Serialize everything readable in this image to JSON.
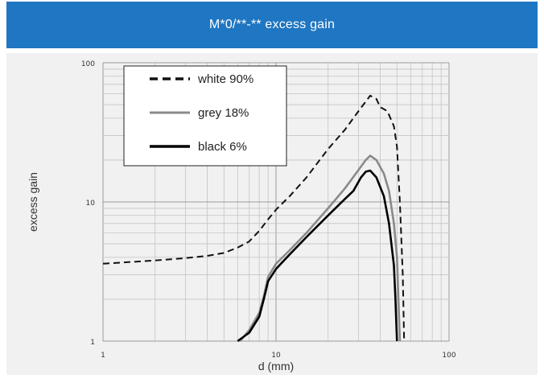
{
  "header": {
    "title": "M*0/**-** excess gain"
  },
  "colors": {
    "header": "#1f76c2",
    "panel": "#f1f1f1",
    "white_series": "#111111",
    "grey_series": "#8a8a8a",
    "black_series": "#000000"
  },
  "chart_data": {
    "type": "line",
    "title": "M*0/**-** excess gain",
    "xlabel": "d (mm)",
    "ylabel": "excess gain",
    "xscale": "log",
    "yscale": "log",
    "xlim": [
      1,
      100
    ],
    "ylim": [
      1,
      100
    ],
    "xticks": [
      "1",
      "10",
      "100"
    ],
    "yticks": [
      "1",
      "10",
      "100"
    ],
    "grid": true,
    "legend_position": "top-left",
    "series": [
      {
        "name": "white 90%",
        "style": "dashed",
        "color": "#111111",
        "points": [
          [
            1,
            3.6
          ],
          [
            2,
            3.8
          ],
          [
            3,
            3.95
          ],
          [
            4,
            4.1
          ],
          [
            5,
            4.3
          ],
          [
            6,
            4.7
          ],
          [
            7,
            5.2
          ],
          [
            8,
            6.2
          ],
          [
            9,
            7.5
          ],
          [
            10,
            8.8
          ],
          [
            12,
            11
          ],
          [
            15,
            15
          ],
          [
            20,
            24
          ],
          [
            25,
            33
          ],
          [
            30,
            45
          ],
          [
            35,
            58
          ],
          [
            38,
            55
          ],
          [
            40,
            48
          ],
          [
            44,
            45
          ],
          [
            48,
            35
          ],
          [
            50,
            25
          ],
          [
            52,
            10
          ],
          [
            54,
            3
          ],
          [
            55,
            1
          ]
        ]
      },
      {
        "name": "grey 18%",
        "style": "solid",
        "color": "#8a8a8a",
        "points": [
          [
            6.2,
            1
          ],
          [
            7,
            1.2
          ],
          [
            8,
            1.6
          ],
          [
            8.5,
            2.1
          ],
          [
            9,
            2.9
          ],
          [
            10,
            3.6
          ],
          [
            12,
            4.5
          ],
          [
            15,
            6
          ],
          [
            20,
            9
          ],
          [
            25,
            12.5
          ],
          [
            30,
            17
          ],
          [
            33,
            20
          ],
          [
            35,
            21.5
          ],
          [
            38,
            20
          ],
          [
            42,
            16
          ],
          [
            45,
            12
          ],
          [
            48,
            7
          ],
          [
            50,
            4
          ],
          [
            51,
            2
          ],
          [
            52,
            1
          ]
        ]
      },
      {
        "name": "black 6%",
        "style": "solid",
        "color": "#000000",
        "points": [
          [
            6,
            1
          ],
          [
            7,
            1.15
          ],
          [
            8,
            1.5
          ],
          [
            8.5,
            2
          ],
          [
            9,
            2.7
          ],
          [
            10,
            3.3
          ],
          [
            12,
            4.2
          ],
          [
            15,
            5.6
          ],
          [
            20,
            8
          ],
          [
            25,
            10.5
          ],
          [
            28,
            12
          ],
          [
            31,
            15
          ],
          [
            33,
            16.5
          ],
          [
            35,
            16.8
          ],
          [
            38,
            15
          ],
          [
            42,
            11
          ],
          [
            45,
            7
          ],
          [
            48,
            3.5
          ],
          [
            49,
            2
          ],
          [
            50,
            1
          ]
        ]
      }
    ]
  }
}
